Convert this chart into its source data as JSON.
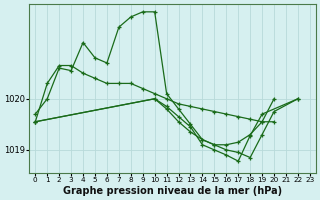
{
  "bg_color": "#d6f0f0",
  "grid_color": "#b8dada",
  "line_color": "#1a6b1a",
  "marker_color": "#1a6b1a",
  "xlabel": "Graphe pression niveau de la mer (hPa)",
  "xlabel_fontsize": 7,
  "ytick_labels": [
    "1019",
    "1020"
  ],
  "ytick_values": [
    1019,
    1020
  ],
  "ylim": [
    1018.55,
    1021.85
  ],
  "xlim": [
    -0.5,
    23.5
  ],
  "xticks": [
    0,
    1,
    2,
    3,
    4,
    5,
    6,
    7,
    8,
    9,
    10,
    11,
    12,
    13,
    14,
    15,
    16,
    17,
    18,
    19,
    20,
    21,
    22,
    23
  ],
  "series_x": [
    [
      0,
      1,
      2,
      3,
      4,
      5,
      6,
      7,
      8,
      9,
      10,
      11,
      12,
      13,
      14,
      15,
      16,
      17,
      18,
      19,
      20
    ],
    [
      0,
      1,
      2,
      3,
      4,
      5,
      6,
      7,
      8,
      9,
      10,
      11,
      12,
      13,
      14,
      15,
      16,
      17,
      18,
      19,
      20
    ],
    [
      0,
      10,
      11,
      12,
      13,
      14,
      15,
      16,
      17,
      18,
      19,
      20,
      22
    ],
    [
      0,
      10,
      11,
      12,
      13,
      14,
      15,
      16,
      17,
      18,
      19,
      22
    ]
  ],
  "series_y": [
    [
      1019.7,
      1020.0,
      1020.6,
      1020.55,
      1021.1,
      1020.8,
      1020.7,
      1021.4,
      1021.6,
      1021.7,
      1021.7,
      1020.1,
      1019.8,
      1019.5,
      1019.2,
      1019.1,
      1019.1,
      1019.15,
      1019.3,
      1019.55,
      1020.0
    ],
    [
      1019.55,
      1020.3,
      1020.65,
      1020.65,
      1020.5,
      1020.4,
      1020.3,
      1020.3,
      1020.3,
      1020.2,
      1020.1,
      1020.0,
      1019.9,
      1019.85,
      1019.8,
      1019.75,
      1019.7,
      1019.65,
      1019.6,
      1019.55,
      1019.55
    ],
    [
      1019.55,
      1020.0,
      1019.8,
      1019.55,
      1019.35,
      1019.2,
      1019.1,
      1019.0,
      1018.95,
      1018.85,
      1019.3,
      1019.75,
      1020.0
    ],
    [
      1019.55,
      1020.0,
      1019.85,
      1019.65,
      1019.45,
      1019.1,
      1019.0,
      1018.9,
      1018.78,
      1019.28,
      1019.7,
      1020.0
    ]
  ]
}
